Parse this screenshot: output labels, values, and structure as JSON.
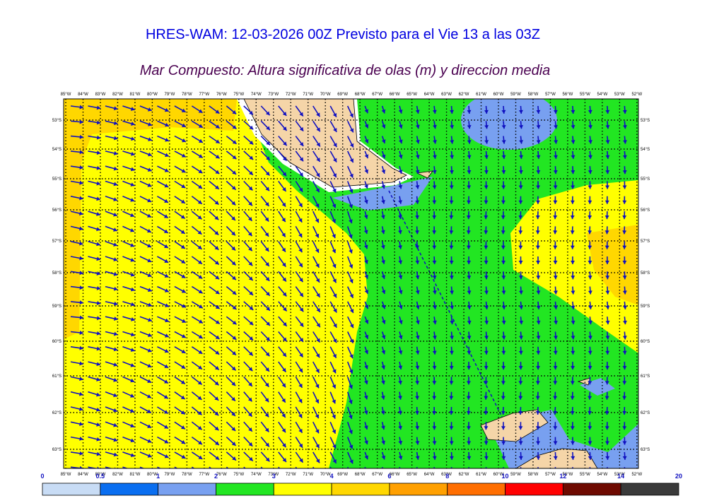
{
  "title": "HRES-WAM: 12-03-2026 00Z Previsto para el Vie 13 a las 03Z",
  "subtitle": "Mar Compuesto: Altura significativa de olas (m) y direccion media",
  "longitudes": [
    "85°W",
    "84°W",
    "83°W",
    "82°W",
    "81°W",
    "80°W",
    "79°W",
    "78°W",
    "77°W",
    "76°W",
    "75°W",
    "74°W",
    "73°W",
    "72°W",
    "71°W",
    "70°W",
    "69°W",
    "68°W",
    "67°W",
    "66°W",
    "65°W",
    "64°W",
    "63°W",
    "62°W",
    "61°W",
    "60°W",
    "59°W",
    "58°W",
    "57°W",
    "56°W",
    "55°W",
    "54°W",
    "53°W",
    "52°W"
  ],
  "latitudes": [
    "53°S",
    "54°S",
    "55°S",
    "56°S",
    "57°S",
    "58°S",
    "59°S",
    "60°S",
    "61°S",
    "62°S",
    "63°S"
  ],
  "colorbar": {
    "labels": [
      0,
      0.5,
      1,
      2,
      3,
      4,
      6,
      8,
      10,
      12,
      14,
      20
    ],
    "colors": [
      "#c8dcf5",
      "#0a6ef0",
      "#78a0f0",
      "#22e622",
      "#ffff00",
      "#ffd700",
      "#ffa000",
      "#ff6e00",
      "#ff0000",
      "#6e0a00",
      "#3a3a3a"
    ]
  }
}
